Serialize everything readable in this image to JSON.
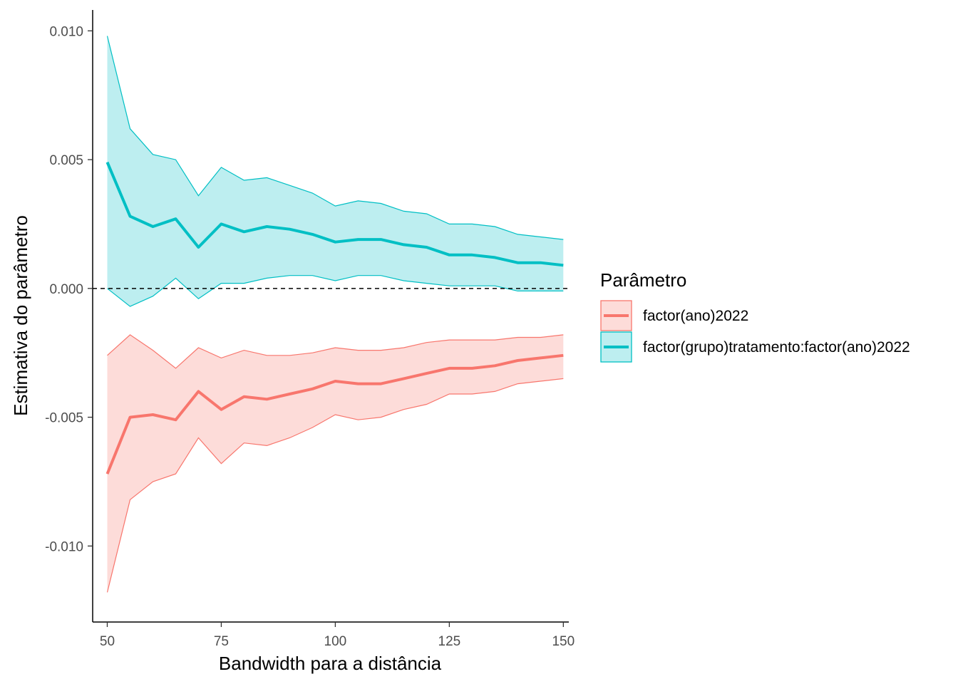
{
  "chart_data": {
    "type": "line",
    "xlabel": "Bandwidth para a distância",
    "ylabel": "Estimativa do parâmetro",
    "xlim": [
      46.8,
      151.2
    ],
    "ylim": [
      -0.01295,
      0.01081
    ],
    "x_ticks": [
      50,
      75,
      100,
      125,
      150
    ],
    "x_tick_labels": [
      "50",
      "75",
      "100",
      "125",
      "150"
    ],
    "y_ticks": [
      0.01,
      0.005,
      0.0,
      -0.005,
      -0.01
    ],
    "y_tick_labels": [
      "0.010",
      "0.005",
      "0.000",
      "-0.005",
      "-0.010"
    ],
    "reference_line": {
      "y": 0,
      "style": "dashed"
    },
    "grid": false,
    "legend": {
      "title": "Parâmetro",
      "position": "right"
    },
    "x": [
      50,
      55,
      60,
      65,
      70,
      75,
      80,
      85,
      90,
      95,
      100,
      105,
      110,
      115,
      120,
      125,
      130,
      135,
      140,
      145,
      150
    ],
    "series": [
      {
        "name": "factor(ano)2022",
        "color": "#F8766D",
        "fill": "#F8766D",
        "estimate": [
          -0.0072,
          -0.005,
          -0.0049,
          -0.0051,
          -0.004,
          -0.0047,
          -0.0042,
          -0.0043,
          -0.0041,
          -0.0039,
          -0.0036,
          -0.0037,
          -0.0037,
          -0.0035,
          -0.0033,
          -0.0031,
          -0.0031,
          -0.003,
          -0.0028,
          -0.0027,
          -0.0026
        ],
        "lower": [
          -0.0118,
          -0.0082,
          -0.0075,
          -0.0072,
          -0.0058,
          -0.0068,
          -0.006,
          -0.0061,
          -0.0058,
          -0.0054,
          -0.0049,
          -0.0051,
          -0.005,
          -0.0047,
          -0.0045,
          -0.0041,
          -0.0041,
          -0.004,
          -0.0037,
          -0.0036,
          -0.0035
        ],
        "upper": [
          -0.0026,
          -0.0018,
          -0.0024,
          -0.0031,
          -0.0023,
          -0.0027,
          -0.0024,
          -0.0026,
          -0.0026,
          -0.0025,
          -0.0023,
          -0.0024,
          -0.0024,
          -0.0023,
          -0.0021,
          -0.002,
          -0.002,
          -0.002,
          -0.0019,
          -0.0019,
          -0.0018
        ]
      },
      {
        "name": "factor(grupo)tratamento:factor(ano)2022",
        "color": "#00BFC4",
        "fill": "#00BFC4",
        "estimate": [
          0.0049,
          0.0028,
          0.0024,
          0.0027,
          0.0016,
          0.0025,
          0.0022,
          0.0024,
          0.0023,
          0.0021,
          0.0018,
          0.0019,
          0.0019,
          0.0017,
          0.0016,
          0.0013,
          0.0013,
          0.0012,
          0.001,
          0.001,
          0.0009
        ],
        "lower": [
          0.0,
          -0.0007,
          -0.0003,
          0.0004,
          -0.0004,
          0.0002,
          0.0002,
          0.0004,
          0.0005,
          0.0005,
          0.0003,
          0.0005,
          0.0005,
          0.0003,
          0.0002,
          0.0001,
          0.0001,
          0.0001,
          -0.0001,
          -0.0001,
          -0.0001
        ],
        "upper": [
          0.0098,
          0.0062,
          0.0052,
          0.005,
          0.0036,
          0.0047,
          0.0042,
          0.0043,
          0.004,
          0.0037,
          0.0032,
          0.0034,
          0.0033,
          0.003,
          0.0029,
          0.0025,
          0.0025,
          0.0024,
          0.0021,
          0.002,
          0.0019
        ]
      }
    ]
  }
}
